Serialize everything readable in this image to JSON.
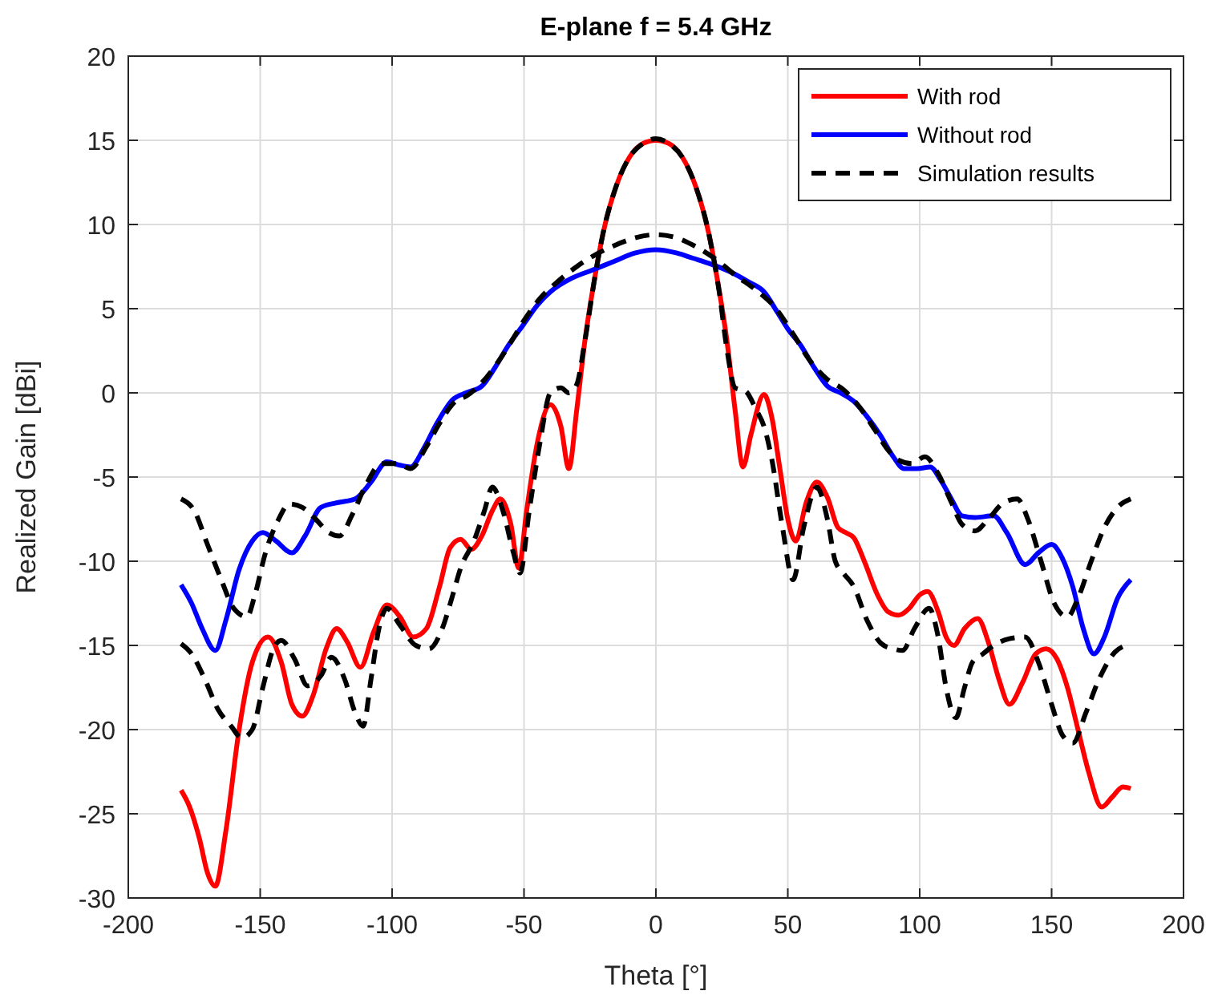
{
  "chart_data": {
    "type": "line",
    "title": "E-plane f = 5.4 GHz",
    "xlabel": "Theta [°]",
    "ylabel": "Realized Gain [dBi]",
    "xlim": [
      -200,
      200
    ],
    "xticks": [
      -200,
      -150,
      -100,
      -50,
      0,
      50,
      100,
      150,
      200
    ],
    "ylim": [
      -30,
      20
    ],
    "yticks": [
      -30,
      -25,
      -20,
      -15,
      -10,
      -5,
      0,
      5,
      10,
      15,
      20
    ],
    "grid": true,
    "legend": "top right",
    "series": [
      {
        "name": "With rod",
        "color": "#ff0000",
        "line_style": "solid",
        "x": [
          -180,
          -177,
          -173,
          -170,
          -167,
          -163,
          -158,
          -153,
          -147,
          -142,
          -138,
          -134,
          -130,
          -125,
          -121,
          -117,
          -112,
          -107,
          -102,
          -97,
          -92,
          -87,
          -82,
          -78,
          -74,
          -70,
          -66,
          -62,
          -59,
          -55,
          -52,
          -49,
          -45,
          -40,
          -36,
          -33,
          -30,
          -27,
          -23,
          -20,
          -15,
          -10,
          -5,
          0,
          5,
          10,
          15,
          20,
          23,
          27,
          30,
          33,
          36,
          41,
          44,
          47,
          50,
          53,
          57,
          61,
          65,
          69,
          72,
          75,
          79,
          84,
          88,
          92,
          96,
          100,
          103,
          107,
          110,
          113,
          117,
          122,
          126,
          130,
          134,
          139,
          144,
          148,
          152,
          156,
          160,
          164,
          169,
          173,
          177,
          180
        ],
        "values": [
          -23.6,
          -24.5,
          -26.5,
          -28.5,
          -29.3,
          -26,
          -20,
          -16,
          -14.5,
          -16,
          -18.5,
          -19.2,
          -18,
          -15.2,
          -14,
          -14.8,
          -16.3,
          -14.2,
          -12.6,
          -13.3,
          -14.5,
          -14,
          -11.5,
          -9.2,
          -8.7,
          -9.3,
          -8.5,
          -7,
          -6.3,
          -7.8,
          -10.4,
          -7,
          -3,
          -0.7,
          -2,
          -4.5,
          -1,
          3,
          7,
          9.5,
          12.3,
          14,
          14.8,
          15,
          14.8,
          14,
          12.3,
          9.5,
          7,
          3,
          -1,
          -4.4,
          -2.5,
          -0.1,
          -1.5,
          -4.5,
          -7.5,
          -8.8,
          -6.5,
          -5.3,
          -6.2,
          -8,
          -8.3,
          -8.6,
          -10,
          -12,
          -13,
          -13.2,
          -12.8,
          -12,
          -11.8,
          -13,
          -14.5,
          -15,
          -14,
          -13.4,
          -14.8,
          -17,
          -18.5,
          -17.2,
          -15.5,
          -15.2,
          -15.8,
          -17.5,
          -20,
          -22.5,
          -24.6,
          -24,
          -23.4,
          -23.5
        ]
      },
      {
        "name": "Without rod",
        "color": "#0000ff",
        "line_style": "solid",
        "x": [
          -180,
          -176,
          -172,
          -167,
          -163,
          -158,
          -153,
          -149,
          -144,
          -138,
          -133,
          -127,
          -120,
          -114,
          -108,
          -102,
          -97,
          -93,
          -88,
          -83,
          -77,
          -72,
          -66,
          -61,
          -56,
          -50,
          -45,
          -40,
          -32,
          -24,
          -16,
          -8,
          0,
          8,
          14,
          20,
          28,
          35,
          41,
          46,
          50,
          55,
          60,
          65,
          70,
          75,
          80,
          85,
          90,
          94,
          99,
          104,
          108,
          112,
          116,
          121,
          128,
          133,
          140,
          145,
          150,
          154,
          158,
          162,
          166,
          170,
          175,
          180
        ],
        "values": [
          -11.4,
          -12.5,
          -14,
          -15.3,
          -13.5,
          -10.5,
          -8.8,
          -8.3,
          -8.8,
          -9.5,
          -8.5,
          -6.8,
          -6.5,
          -6.3,
          -5.3,
          -4.1,
          -4.3,
          -4.4,
          -3.3,
          -1.8,
          -0.4,
          0,
          0.4,
          1.5,
          2.8,
          4.1,
          5.2,
          6,
          6.8,
          7.3,
          7.8,
          8.3,
          8.5,
          8.3,
          8,
          7.7,
          7.2,
          6.6,
          6,
          4.8,
          3.8,
          2.8,
          1.5,
          0.4,
          0,
          -0.5,
          -1.4,
          -2.5,
          -3.8,
          -4.5,
          -4.5,
          -4.4,
          -5.2,
          -6.3,
          -7.3,
          -7.4,
          -7.3,
          -8.3,
          -10.2,
          -9.5,
          -9,
          -9.8,
          -11.5,
          -14,
          -15.5,
          -14.5,
          -12.2,
          -11.1
        ]
      },
      {
        "name": "Simulation results",
        "color": "#000000",
        "line_style": "dashed",
        "x": [
          -180,
          -175,
          -170,
          -165,
          -160,
          -155,
          -152,
          -148,
          -143,
          -139,
          -134,
          -129,
          -124,
          -120,
          -115,
          -110,
          -104,
          -98,
          -93,
          -87,
          -82,
          -76,
          -72,
          -66,
          -60,
          -55,
          -50,
          -44,
          -38,
          -30,
          -23,
          -15,
          -8,
          0,
          8,
          15,
          23,
          30,
          38,
          45,
          52,
          58,
          65,
          71,
          77,
          83,
          88,
          92,
          97,
          102,
          107,
          112,
          116,
          121,
          126,
          132,
          137,
          141,
          146,
          151,
          156,
          160,
          165,
          170,
          175,
          180
        ],
        "values": [
          -6.3,
          -7,
          -9,
          -11,
          -12.8,
          -13.3,
          -12,
          -9.5,
          -7.5,
          -6.6,
          -6.8,
          -7.5,
          -8.3,
          -8.5,
          -7.2,
          -5.5,
          -4.2,
          -4.2,
          -4.5,
          -3.2,
          -1.8,
          -0.5,
          -0.2,
          0.6,
          1.8,
          3,
          4.3,
          5.6,
          6.5,
          7.5,
          8.2,
          8.8,
          9.2,
          9.4,
          9.2,
          8.7,
          7.9,
          7,
          6.1,
          5.1,
          3.5,
          2,
          0.8,
          0.2,
          -0.8,
          -2.2,
          -3.4,
          -4,
          -4.2,
          -3.8,
          -4.8,
          -6.5,
          -7.8,
          -8.2,
          -7.5,
          -6.5,
          -6.3,
          -7.5,
          -10,
          -12.5,
          -13.3,
          -12.2,
          -10,
          -8,
          -6.8,
          -6.3
        ]
      },
      {
        "color": "#000000",
        "line_style": "dashed",
        "x": [
          -180,
          -176,
          -171,
          -166,
          -161,
          -157,
          -153,
          -149,
          -145,
          -142,
          -137,
          -132,
          -127,
          -123,
          -118,
          -114,
          -111,
          -108,
          -105,
          -102,
          -97,
          -91,
          -86,
          -81,
          -77,
          -74,
          -69,
          -65,
          -62,
          -58,
          -54,
          -51.5,
          -48,
          -44,
          -40,
          -36,
          -33,
          -30,
          -27,
          -23,
          -20,
          -15,
          -10,
          -5,
          0,
          5,
          10,
          15,
          20,
          24,
          27,
          30,
          34,
          38,
          41,
          44,
          48,
          52,
          56,
          61,
          65,
          68,
          71,
          75,
          80,
          85.5,
          90,
          93.5,
          98,
          103.6,
          107,
          110,
          113.7,
          117,
          120,
          124,
          128,
          134,
          140,
          145,
          150,
          154,
          158,
          163,
          168,
          174,
          178
        ],
        "values": [
          -14.9,
          -15.5,
          -17,
          -18.8,
          -19.8,
          -20.5,
          -20,
          -17.5,
          -15.2,
          -14.7,
          -15.8,
          -17.4,
          -16.8,
          -15.7,
          -17,
          -19,
          -19.8,
          -17,
          -14,
          -12.8,
          -13.8,
          -15,
          -15.2,
          -14,
          -12,
          -10.4,
          -8.8,
          -7,
          -5.6,
          -7,
          -9.5,
          -10.7,
          -7,
          -3,
          0,
          0.3,
          0,
          0.5,
          3,
          7,
          9.5,
          12.3,
          14,
          14.8,
          15.1,
          14.8,
          14,
          12.3,
          9.5,
          6,
          2.5,
          0.3,
          0.1,
          -1,
          -2,
          -4,
          -8,
          -11.1,
          -8,
          -5.6,
          -7.5,
          -10,
          -10.7,
          -11.5,
          -13.5,
          -14.9,
          -15.2,
          -15.3,
          -14,
          -12.8,
          -14.5,
          -17.5,
          -19.3,
          -17.5,
          -16,
          -15.5,
          -15,
          -14.6,
          -14.5,
          -16,
          -18.5,
          -20.3,
          -20.8,
          -19,
          -17,
          -15.4,
          -15
        ]
      }
    ]
  }
}
